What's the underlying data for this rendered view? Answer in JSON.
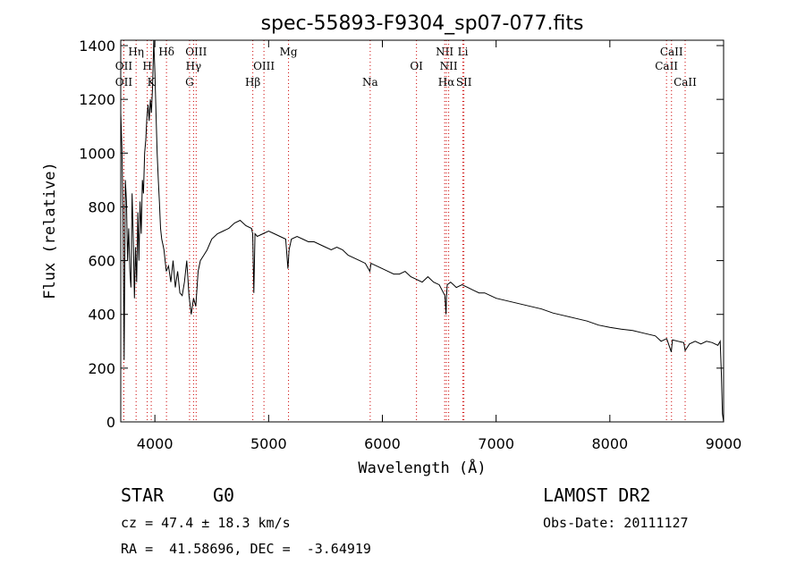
{
  "chart_data": {
    "type": "line",
    "title": "spec-55893-F9304_sp07-077.fits",
    "xlabel": "Wavelength (Å)",
    "ylabel": "Flux (relative)",
    "xlim": [
      3700,
      9000
    ],
    "ylim": [
      0,
      1420
    ],
    "x_ticks": [
      4000,
      5000,
      6000,
      7000,
      8000,
      9000
    ],
    "y_ticks": [
      0,
      200,
      400,
      600,
      800,
      1000,
      1200,
      1400
    ],
    "grid": false,
    "line_color": "#000000",
    "marker_color": "#cc0000",
    "series": [
      {
        "x": [
          3700,
          3710,
          3720,
          3730,
          3740,
          3750,
          3760,
          3770,
          3780,
          3790,
          3800,
          3810,
          3820,
          3830,
          3840,
          3850,
          3860,
          3870,
          3880,
          3890,
          3900,
          3910,
          3920,
          3930,
          3940,
          3950,
          3960,
          3970,
          3980,
          3990,
          4000,
          4010,
          4020,
          4030,
          4040,
          4050,
          4060,
          4070,
          4080,
          4090,
          4100,
          4120,
          4140,
          4160,
          4180,
          4200,
          4220,
          4240,
          4260,
          4280,
          4300,
          4320,
          4340,
          4360,
          4380,
          4400,
          4430,
          4460,
          4500,
          4550,
          4600,
          4650,
          4700,
          4750,
          4800,
          4850,
          4860,
          4870,
          4880,
          4900,
          4950,
          5000,
          5050,
          5100,
          5150,
          5170,
          5180,
          5200,
          5250,
          5300,
          5350,
          5400,
          5450,
          5500,
          5550,
          5600,
          5650,
          5700,
          5750,
          5800,
          5850,
          5890,
          5900,
          5950,
          6000,
          6050,
          6100,
          6150,
          6200,
          6250,
          6300,
          6350,
          6400,
          6450,
          6500,
          6550,
          6560,
          6563,
          6570,
          6600,
          6650,
          6700,
          6750,
          6800,
          6850,
          6900,
          6950,
          7000,
          7100,
          7200,
          7300,
          7400,
          7500,
          7600,
          7700,
          7800,
          7900,
          8000,
          8100,
          8200,
          8300,
          8400,
          8450,
          8500,
          8540,
          8550,
          8600,
          8650,
          8662,
          8700,
          8750,
          8800,
          8850,
          8900,
          8950,
          8970,
          8980,
          8990,
          9000
        ],
        "y": [
          1150,
          1020,
          780,
          230,
          900,
          820,
          600,
          720,
          560,
          500,
          850,
          680,
          460,
          650,
          520,
          780,
          600,
          820,
          700,
          900,
          850,
          1000,
          1050,
          1130,
          1180,
          1120,
          1200,
          1150,
          1250,
          1420,
          1300,
          1150,
          1000,
          900,
          820,
          720,
          680,
          660,
          640,
          600,
          560,
          580,
          520,
          600,
          500,
          560,
          480,
          470,
          520,
          600,
          470,
          400,
          460,
          430,
          560,
          600,
          620,
          640,
          680,
          700,
          710,
          720,
          740,
          750,
          730,
          720,
          700,
          480,
          700,
          690,
          700,
          710,
          700,
          690,
          680,
          570,
          640,
          680,
          690,
          680,
          670,
          670,
          660,
          650,
          640,
          650,
          640,
          620,
          610,
          600,
          590,
          560,
          590,
          580,
          570,
          560,
          550,
          550,
          560,
          540,
          530,
          520,
          540,
          520,
          510,
          470,
          400,
          460,
          510,
          520,
          500,
          510,
          500,
          490,
          480,
          480,
          470,
          460,
          450,
          440,
          430,
          420,
          405,
          395,
          385,
          375,
          360,
          352,
          345,
          340,
          330,
          320,
          300,
          310,
          260,
          305,
          300,
          295,
          265,
          290,
          300,
          290,
          300,
          295,
          285,
          300,
          180,
          30,
          0
        ]
      }
    ],
    "lines": [
      {
        "name": "OII",
        "x": 3727,
        "row": 2
      },
      {
        "name": "OII",
        "x": 3727,
        "row": 3
      },
      {
        "name": "Hη",
        "x": 3835,
        "row": 1
      },
      {
        "name": "H",
        "x": 3933,
        "row": 2
      },
      {
        "name": "K",
        "x": 3968,
        "row": 3
      },
      {
        "name": "Hδ",
        "x": 4102,
        "row": 1
      },
      {
        "name": "OIII",
        "x": 4363,
        "row": 1
      },
      {
        "name": "Hγ",
        "x": 4340,
        "row": 2
      },
      {
        "name": "G",
        "x": 4305,
        "row": 3
      },
      {
        "name": "Hβ",
        "x": 4861,
        "row": 3
      },
      {
        "name": "OIII",
        "x": 4959,
        "row": 2
      },
      {
        "name": "Mg",
        "x": 5175,
        "row": 1
      },
      {
        "name": "Na",
        "x": 5893,
        "row": 3
      },
      {
        "name": "OI",
        "x": 6300,
        "row": 2
      },
      {
        "name": "NII",
        "x": 6548,
        "row": 1
      },
      {
        "name": "NII",
        "x": 6583,
        "row": 2
      },
      {
        "name": "Hα",
        "x": 6563,
        "row": 3
      },
      {
        "name": "Li",
        "x": 6708,
        "row": 1
      },
      {
        "name": "SII",
        "x": 6717,
        "row": 3
      },
      {
        "name": "CaII",
        "x": 8498,
        "row": 2
      },
      {
        "name": "CaII",
        "x": 8542,
        "row": 1
      },
      {
        "name": "CaII",
        "x": 8662,
        "row": 3
      }
    ]
  },
  "info": {
    "class_label": "STAR",
    "subclass": "G0",
    "survey": "LAMOST DR2",
    "cz": "cz = 47.4 ± 18.3 km/s",
    "obs_date": "Obs-Date: 20111127",
    "coords": "RA =  41.58696, DEC =  -3.64919"
  }
}
